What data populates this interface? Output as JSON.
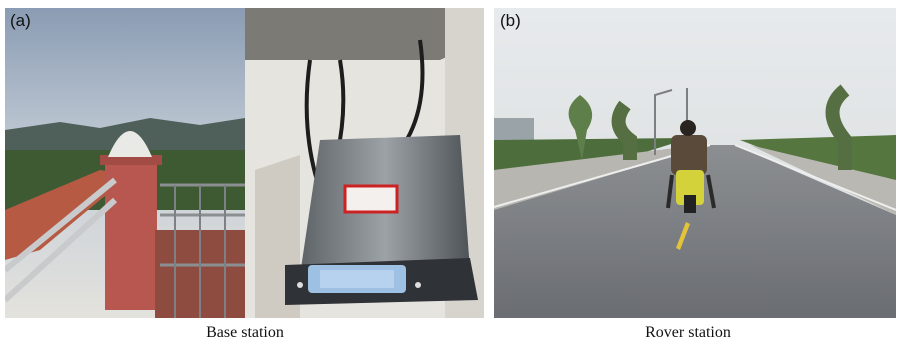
{
  "panels": [
    {
      "label": "(a)",
      "caption": "Base station"
    },
    {
      "label": "(b)",
      "caption": "Rover station"
    }
  ]
}
